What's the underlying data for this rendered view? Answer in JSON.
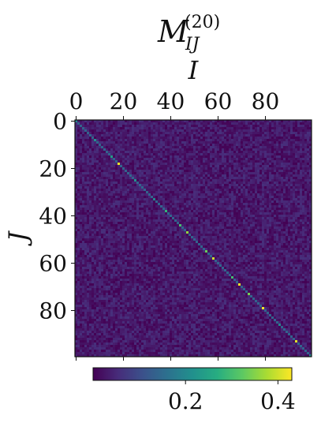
{
  "chart_data": {
    "type": "heatmap",
    "title": {
      "base": "M",
      "superscript": "(20)",
      "subscript": "IJ"
    },
    "xlabel": "I",
    "ylabel": "J",
    "x_axis_position": "top",
    "x_range": [
      0,
      99
    ],
    "y_range": [
      0,
      99
    ],
    "y_inverted": true,
    "x_ticks": [
      "0",
      "20",
      "40",
      "60",
      "80"
    ],
    "y_ticks": [
      "0",
      "20",
      "40",
      "60",
      "80"
    ],
    "colormap": "viridis",
    "colorbar": {
      "orientation": "horizontal",
      "placement": "bottom",
      "range": [
        0.0,
        0.43
      ],
      "ticks": [
        "0.2",
        "0.4"
      ]
    },
    "matrix_size": 100,
    "background_level_range": [
      0.0,
      0.06
    ],
    "diagonal": [
      {
        "index": 0,
        "value": 0.2
      },
      {
        "index": 8,
        "value": 0.22
      },
      {
        "index": 15,
        "value": 0.24
      },
      {
        "index": 18,
        "value": 0.42
      },
      {
        "index": 25,
        "value": 0.22
      },
      {
        "index": 33,
        "value": 0.2
      },
      {
        "index": 38,
        "value": 0.28
      },
      {
        "index": 44,
        "value": 0.3
      },
      {
        "index": 47,
        "value": 0.36
      },
      {
        "index": 55,
        "value": 0.33
      },
      {
        "index": 58,
        "value": 0.4
      },
      {
        "index": 66,
        "value": 0.3
      },
      {
        "index": 69,
        "value": 0.42
      },
      {
        "index": 73,
        "value": 0.34
      },
      {
        "index": 79,
        "value": 0.43
      },
      {
        "index": 86,
        "value": 0.2
      },
      {
        "index": 93,
        "value": 0.41
      },
      {
        "index": 99,
        "value": 0.2
      }
    ],
    "diagonal_default": 0.14
  }
}
